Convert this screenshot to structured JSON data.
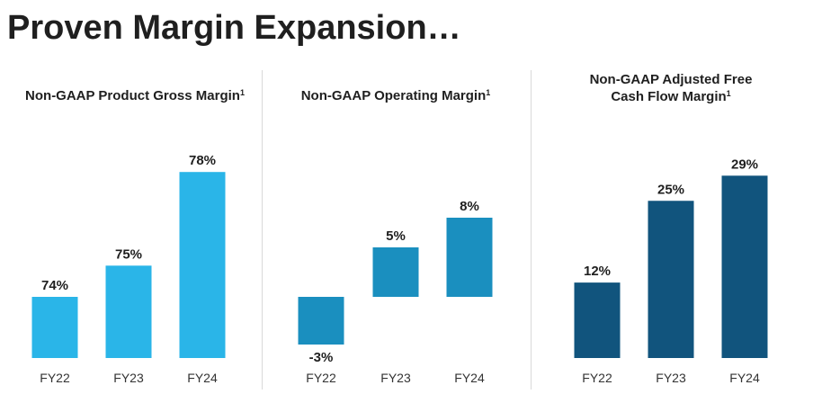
{
  "page_title": "Proven Margin Expansion…",
  "chart_data": [
    {
      "type": "bar",
      "title": "Non-GAAP Product Gross Margin",
      "title_lines": [
        "Non-GAAP Product Gross Margin"
      ],
      "footnote": "1",
      "categories": [
        "FY22",
        "FY23",
        "FY24"
      ],
      "values": [
        74,
        75,
        78
      ],
      "value_labels": [
        "74%",
        "75%",
        "78%"
      ],
      "color": "#2ab5e8",
      "grid": false,
      "legend": "none"
    },
    {
      "type": "bar",
      "title": "Non-GAAP Operating Margin",
      "title_lines": [
        "Non-GAAP Operating Margin"
      ],
      "footnote": "1",
      "categories": [
        "FY22",
        "FY23",
        "FY24"
      ],
      "values": [
        -3,
        5,
        8
      ],
      "value_labels": [
        "-3%",
        "5%",
        "8%"
      ],
      "color": "#1a8fbf",
      "grid": false,
      "legend": "none"
    },
    {
      "type": "bar",
      "title": "Non-GAAP Adjusted Free Cash Flow Margin",
      "title_lines": [
        "Non-GAAP Adjusted Free",
        "Cash Flow Margin"
      ],
      "footnote": "1",
      "categories": [
        "FY22",
        "FY23",
        "FY24"
      ],
      "values": [
        12,
        25,
        29
      ],
      "value_labels": [
        "12%",
        "25%",
        "29%"
      ],
      "color": "#11547d",
      "grid": false,
      "legend": "none"
    }
  ]
}
